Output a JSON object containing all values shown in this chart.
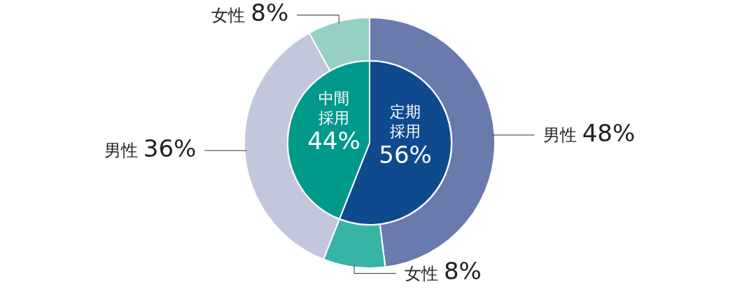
{
  "chart_data": [
    {
      "type": "donut",
      "categories": [
        "男性",
        "女性",
        "男性",
        "女性"
      ],
      "values": [
        48,
        8,
        36,
        8
      ],
      "value_labels": [
        "48%",
        "8%",
        "36%",
        "8%"
      ],
      "colors": [
        "#6a7aad",
        "#37b4a6",
        "#c3c7dc",
        "#96d0c5"
      ]
    },
    {
      "type": "pie",
      "categories": [
        "定期採用",
        "中間採用"
      ],
      "values": [
        56,
        44
      ],
      "value_labels": [
        "56%",
        "44%"
      ],
      "colors": [
        "#0f4a8e",
        "#00998a"
      ]
    }
  ]
}
